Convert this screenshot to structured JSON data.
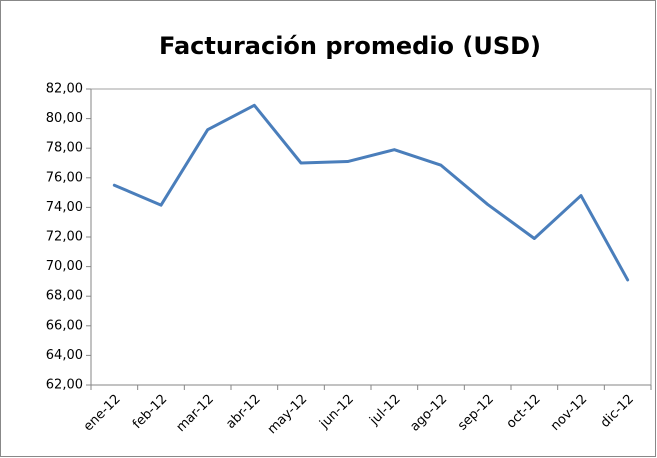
{
  "chart_data": {
    "type": "line",
    "title": "Facturación promedio (USD)",
    "categories": [
      "ene-12",
      "feb-12",
      "mar-12",
      "abr-12",
      "may-12",
      "jun-12",
      "jul-12",
      "ago-12",
      "sep-12",
      "oct-12",
      "nov-12",
      "dic-12"
    ],
    "values": [
      75.5,
      74.15,
      79.25,
      80.9,
      77.0,
      77.1,
      77.9,
      76.85,
      74.2,
      71.9,
      74.8,
      69.1
    ],
    "color": "#4a7ebb",
    "ylim": [
      62,
      82
    ],
    "yticks": [
      {
        "value": 62,
        "label": "62,00"
      },
      {
        "value": 64,
        "label": "64,00"
      },
      {
        "value": 66,
        "label": "66,00"
      },
      {
        "value": 68,
        "label": "68,00"
      },
      {
        "value": 70,
        "label": "70,00"
      },
      {
        "value": 72,
        "label": "72,00"
      },
      {
        "value": 74,
        "label": "74,00"
      },
      {
        "value": 76,
        "label": "76,00"
      },
      {
        "value": 78,
        "label": "78,00"
      },
      {
        "value": 80,
        "label": "80,00"
      },
      {
        "value": 82,
        "label": "82,00"
      }
    ],
    "grid": false
  }
}
